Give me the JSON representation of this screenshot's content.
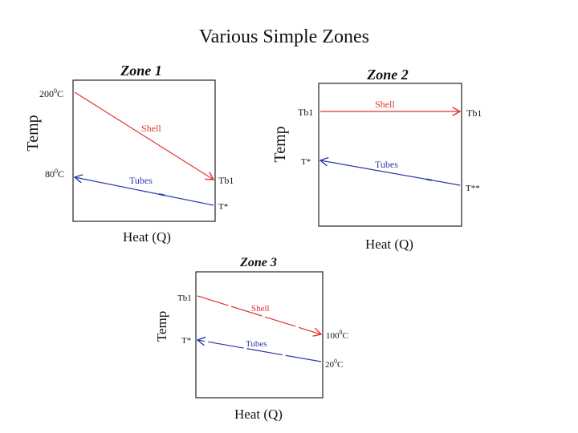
{
  "slide": {
    "title": "Various Simple Zones"
  },
  "colors": {
    "shell": "#e03030",
    "tubes": "#2a3aa8",
    "frame": "#222222",
    "text": "#111111"
  },
  "zones": [
    {
      "title": "Zone 1",
      "ylabel": "Temp",
      "xlabel": "Heat (Q)",
      "left_labels": [
        "200",
        "80"
      ],
      "left_label_unit": "C",
      "left_label_sup": "0",
      "right_labels": [
        "Tb1",
        "T*"
      ],
      "shell_label": "Shell",
      "tubes_label": "Tubes"
    },
    {
      "title": "Zone 2",
      "ylabel": "Temp",
      "xlabel": "Heat (Q)",
      "left_labels": [
        "Tb1",
        "T*"
      ],
      "right_labels": [
        "Tb1",
        "T**"
      ],
      "shell_label": "Shell",
      "tubes_label": "Tubes"
    },
    {
      "title": "Zone 3",
      "ylabel": "Temp",
      "xlabel": "Heat (Q)",
      "left_labels": [
        "Tb1",
        "T*"
      ],
      "right_labels": [
        "100",
        "20"
      ],
      "right_label_unit": "C",
      "right_label_sup": "0",
      "shell_label": "Shell",
      "tubes_label": "Tubes"
    }
  ]
}
